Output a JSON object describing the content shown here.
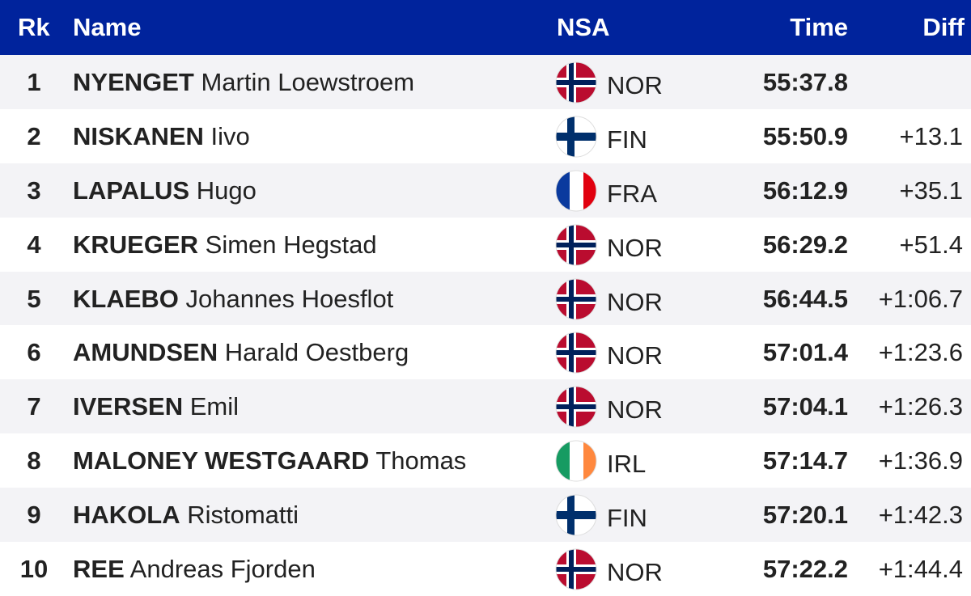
{
  "headers": {
    "rank": "Rk",
    "name": "Name",
    "nsa": "NSA",
    "time": "Time",
    "diff": "Diff"
  },
  "rows": [
    {
      "rank": "1",
      "last": "NYENGET",
      "first": "Martin Loewstroem",
      "flag": "flag-nor-icon",
      "nsa": "NOR",
      "time": "55:37.8",
      "diff": ""
    },
    {
      "rank": "2",
      "last": "NISKANEN",
      "first": "Iivo",
      "flag": "flag-fin-icon",
      "nsa": "FIN",
      "time": "55:50.9",
      "diff": "+13.1"
    },
    {
      "rank": "3",
      "last": "LAPALUS",
      "first": "Hugo",
      "flag": "flag-fra-icon",
      "nsa": "FRA",
      "time": "56:12.9",
      "diff": "+35.1"
    },
    {
      "rank": "4",
      "last": "KRUEGER",
      "first": "Simen Hegstad",
      "flag": "flag-nor-icon",
      "nsa": "NOR",
      "time": "56:29.2",
      "diff": "+51.4"
    },
    {
      "rank": "5",
      "last": "KLAEBO",
      "first": "Johannes Hoesflot",
      "flag": "flag-nor-icon",
      "nsa": "NOR",
      "time": "56:44.5",
      "diff": "+1:06.7"
    },
    {
      "rank": "6",
      "last": "AMUNDSEN",
      "first": "Harald Oestberg",
      "flag": "flag-nor-icon",
      "nsa": "NOR",
      "time": "57:01.4",
      "diff": "+1:23.6"
    },
    {
      "rank": "7",
      "last": "IVERSEN",
      "first": "Emil",
      "flag": "flag-nor-icon",
      "nsa": "NOR",
      "time": "57:04.1",
      "diff": "+1:26.3"
    },
    {
      "rank": "8",
      "last": "MALONEY WESTGAARD",
      "first": "Thomas",
      "flag": "flag-irl-icon",
      "nsa": "IRL",
      "time": "57:14.7",
      "diff": "+1:36.9"
    },
    {
      "rank": "9",
      "last": "HAKOLA",
      "first": "Ristomatti",
      "flag": "flag-fin-icon",
      "nsa": "FIN",
      "time": "57:20.1",
      "diff": "+1:42.3"
    },
    {
      "rank": "10",
      "last": "REE",
      "first": "Andreas Fjorden",
      "flag": "flag-nor-icon",
      "nsa": "NOR",
      "time": "57:22.2",
      "diff": "+1:44.4"
    }
  ],
  "colors": {
    "header_bg": "#00239c",
    "row_alt_bg": "#f3f3f6"
  }
}
